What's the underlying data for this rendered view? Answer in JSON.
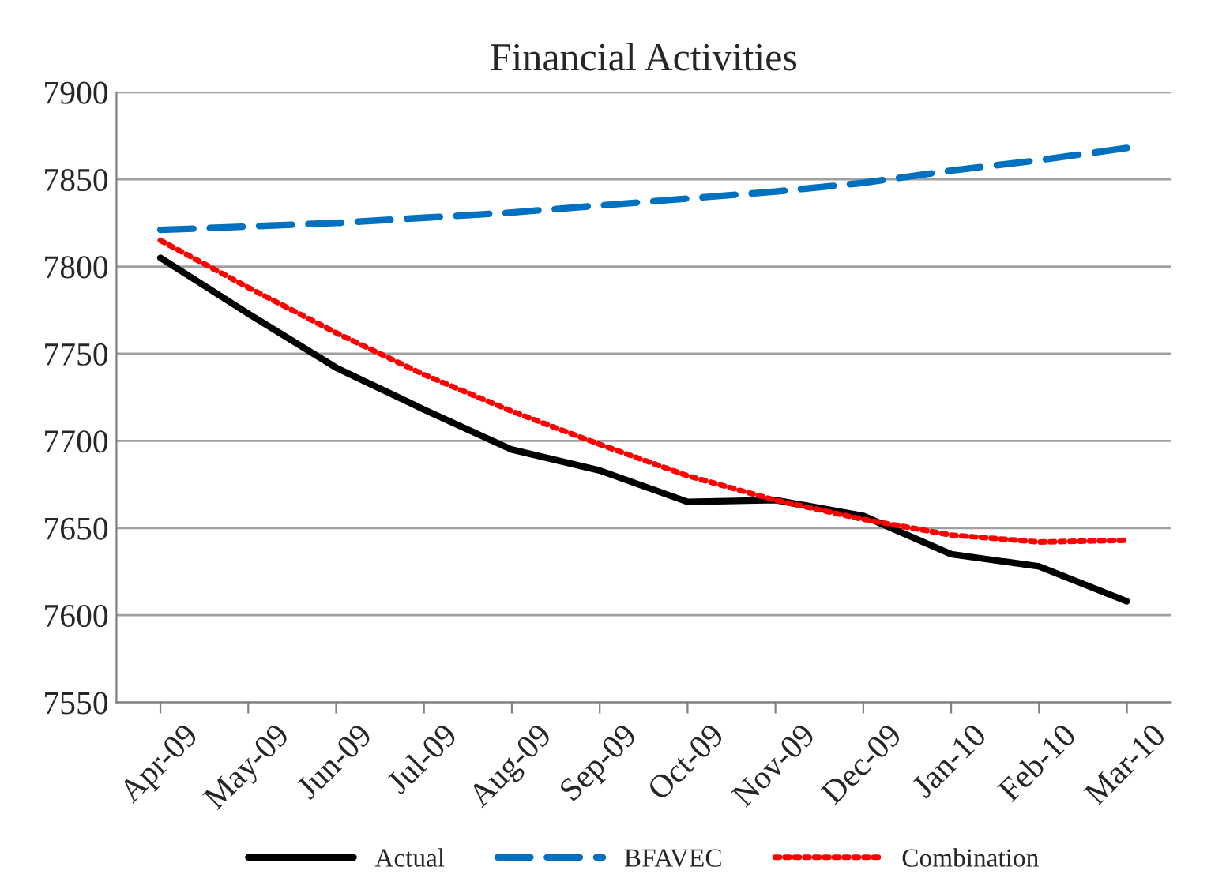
{
  "chart_data": {
    "type": "line",
    "title": "Financial Activities",
    "categories": [
      "Apr-09",
      "May-09",
      "Jun-09",
      "Jul-09",
      "Aug-09",
      "Sep-09",
      "Oct-09",
      "Nov-09",
      "Dec-09",
      "Jan-10",
      "Feb-10",
      "Mar-10"
    ],
    "series": [
      {
        "name": "Actual",
        "color": "#000000",
        "line_style": "solid",
        "values": [
          7805,
          7773,
          7742,
          7718,
          7695,
          7683,
          7665,
          7666,
          7657,
          7635,
          7628,
          7608
        ]
      },
      {
        "name": "BFAVEC",
        "color": "#0070c0",
        "line_style": "dashed",
        "values": [
          7821,
          7823,
          7825,
          7828,
          7831,
          7835,
          7839,
          7843,
          7848,
          7855,
          7861,
          7868
        ]
      },
      {
        "name": "Combination",
        "color": "#ff0000",
        "line_style": "dotted",
        "values": [
          7815,
          7788,
          7762,
          7738,
          7717,
          7698,
          7680,
          7666,
          7655,
          7646,
          7642,
          7643
        ]
      }
    ],
    "ylim": [
      7550,
      7900
    ],
    "yticks": [
      7550,
      7600,
      7650,
      7700,
      7750,
      7800,
      7850,
      7900
    ],
    "grid": "y",
    "legend": "bottom"
  }
}
